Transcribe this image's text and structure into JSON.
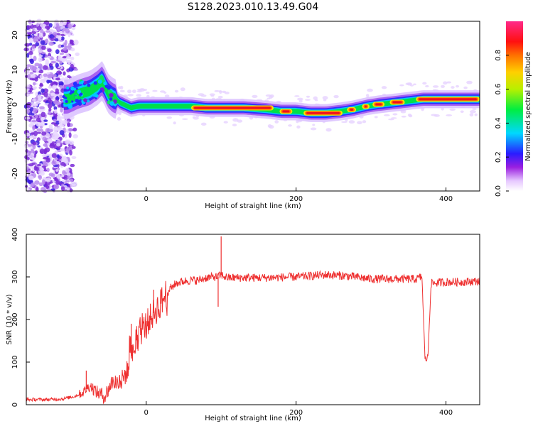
{
  "figure_title": "S128.2023.010.13.49.G04",
  "chart_data": [
    {
      "type": "heatmap",
      "title": "",
      "xlabel": "Height of straight line (km)",
      "ylabel": "Frequency (Hz)",
      "xlim": [
        -160,
        445
      ],
      "ylim": [
        -25,
        24
      ],
      "xticks": [
        0,
        200,
        400
      ],
      "yticks": [
        20,
        10,
        0,
        -10,
        -20
      ],
      "grid": false,
      "colorbar": {
        "label": "Normalized spectral amplitude",
        "range": [
          0,
          1
        ],
        "ticks": [
          0.0,
          0.2,
          0.4,
          0.6,
          0.8
        ],
        "colormap": "rainbow: white-violet-blue-cyan-green-yellow-orange-red-pink"
      },
      "ridge_line": {
        "description": "dominant frequency (Hz) vs height (km)",
        "x": [
          -105,
          -90,
          -75,
          -65,
          -58,
          -55,
          -50,
          -45,
          -40,
          -35,
          -30,
          -25,
          -20,
          -10,
          0,
          20,
          40,
          60,
          80,
          100,
          130,
          160,
          180,
          200,
          220,
          240,
          260,
          275,
          285,
          295,
          310,
          330,
          350,
          370,
          400,
          445
        ],
        "y": [
          1.5,
          3,
          4,
          5.5,
          7,
          5,
          3,
          2,
          1.5,
          0.5,
          0,
          -0.5,
          -1,
          -0.5,
          -0.5,
          -0.5,
          -0.5,
          -0.5,
          -1,
          -1,
          -1,
          -1.5,
          -2,
          -2,
          -2.5,
          -2.5,
          -2,
          -1.5,
          -1,
          -0.5,
          0,
          0.5,
          1,
          1.5,
          1.5,
          1.5
        ]
      },
      "noise_region_km": [
        -160,
        -100
      ]
    },
    {
      "type": "line",
      "title": "",
      "xlabel": "Height of straight line (km)",
      "ylabel": "SNR (10 * v/v)",
      "xlim": [
        -160,
        445
      ],
      "ylim": [
        0,
        400
      ],
      "xticks": [
        0,
        200,
        400
      ],
      "yticks": [
        400,
        300,
        200,
        100,
        0
      ],
      "grid": false,
      "series": [
        {
          "color": "#ee3030",
          "x": [
            -160,
            -130,
            -110,
            -95,
            -85,
            -75,
            -65,
            -55,
            -45,
            -35,
            -25,
            -18,
            -10,
            0,
            10,
            20,
            30,
            40,
            50,
            60,
            70,
            80,
            90,
            95,
            100,
            105,
            110,
            130,
            160,
            200,
            240,
            270,
            300,
            330,
            360,
            368,
            370,
            372,
            374,
            376,
            380,
            400,
            420,
            445
          ],
          "y": [
            12,
            12,
            14,
            20,
            28,
            45,
            28,
            20,
            55,
            50,
            80,
            120,
            160,
            190,
            215,
            240,
            270,
            285,
            290,
            292,
            292,
            298,
            300,
            300,
            305,
            300,
            298,
            298,
            298,
            300,
            305,
            302,
            295,
            295,
            295,
            300,
            200,
            110,
            105,
            115,
            285,
            288,
            288,
            290
          ]
        }
      ],
      "spikes": [
        {
          "x": -80,
          "y": 80
        },
        {
          "x": -20,
          "y": 190
        },
        {
          "x": 10,
          "y": 270
        },
        {
          "x": 100,
          "y": 395
        },
        {
          "x": 96,
          "y": 230
        }
      ]
    }
  ]
}
